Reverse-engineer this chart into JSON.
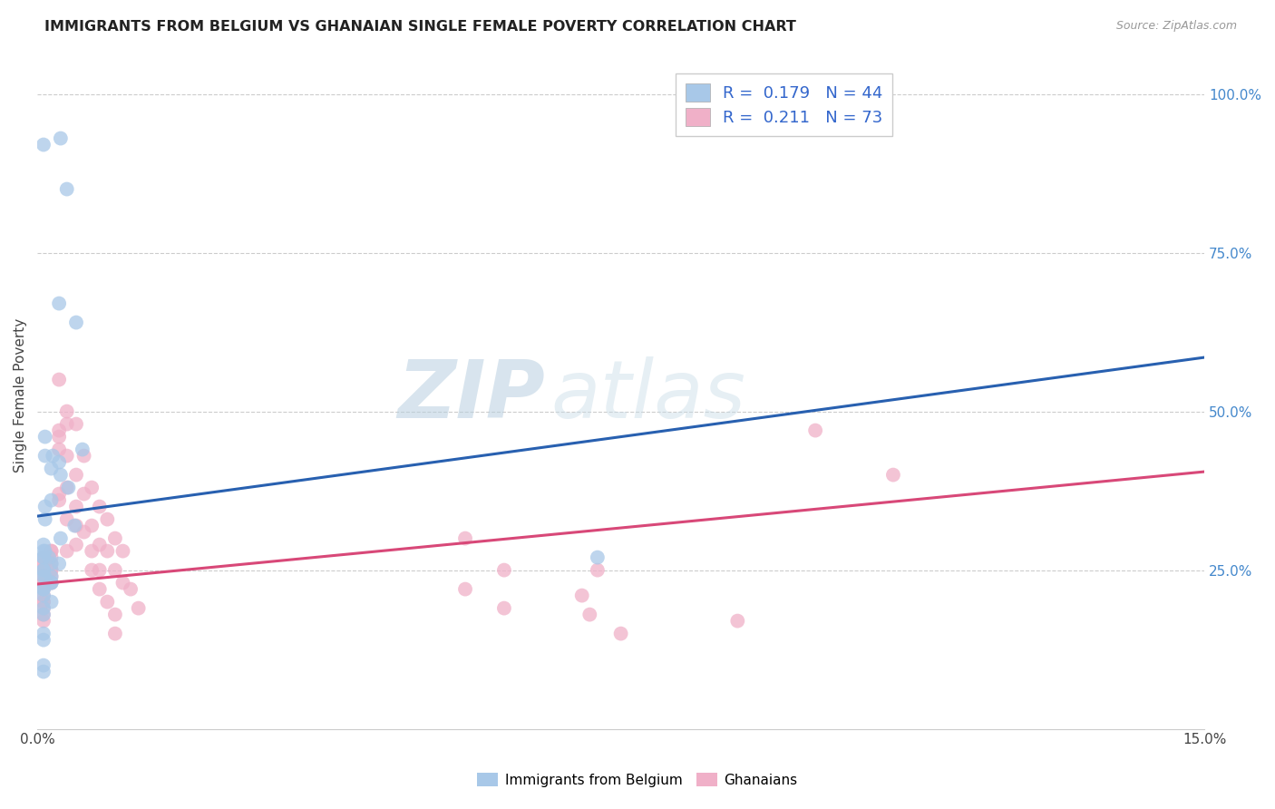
{
  "title": "IMMIGRANTS FROM BELGIUM VS GHANAIAN SINGLE FEMALE POVERTY CORRELATION CHART",
  "source": "Source: ZipAtlas.com",
  "ylabel": "Single Female Poverty",
  "legend_label_blue": "Immigrants from Belgium",
  "legend_label_pink": "Ghanaians",
  "blue_color": "#a8c8e8",
  "pink_color": "#f0b0c8",
  "blue_line_color": "#2860b0",
  "pink_line_color": "#d84878",
  "watermark_zip": "ZIP",
  "watermark_atlas": "atlas",
  "background_color": "#ffffff",
  "blue_line_x0": 0.0,
  "blue_line_y0": 0.335,
  "blue_line_x1": 0.15,
  "blue_line_y1": 0.585,
  "pink_line_x0": 0.0,
  "pink_line_y0": 0.228,
  "pink_line_x1": 0.15,
  "pink_line_y1": 0.405,
  "blue_points_x": [
    0.0008,
    0.003,
    0.0038,
    0.0028,
    0.005,
    0.001,
    0.002,
    0.001,
    0.0028,
    0.0018,
    0.003,
    0.004,
    0.0018,
    0.001,
    0.001,
    0.0048,
    0.003,
    0.0008,
    0.0008,
    0.001,
    0.0008,
    0.0015,
    0.0008,
    0.0018,
    0.0028,
    0.0008,
    0.0008,
    0.0008,
    0.001,
    0.0018,
    0.0018,
    0.0018,
    0.0008,
    0.0008,
    0.0008,
    0.0018,
    0.0008,
    0.0008,
    0.0058,
    0.0008,
    0.0008,
    0.072,
    0.0008,
    0.0008
  ],
  "blue_points_y": [
    0.92,
    0.93,
    0.85,
    0.67,
    0.64,
    0.46,
    0.43,
    0.43,
    0.42,
    0.41,
    0.4,
    0.38,
    0.36,
    0.35,
    0.33,
    0.32,
    0.3,
    0.29,
    0.28,
    0.28,
    0.27,
    0.27,
    0.27,
    0.26,
    0.26,
    0.25,
    0.25,
    0.24,
    0.24,
    0.24,
    0.23,
    0.23,
    0.22,
    0.22,
    0.21,
    0.2,
    0.19,
    0.18,
    0.44,
    0.15,
    0.14,
    0.27,
    0.1,
    0.09
  ],
  "pink_points_x": [
    0.0008,
    0.0008,
    0.0008,
    0.0008,
    0.0008,
    0.0008,
    0.0008,
    0.0008,
    0.0008,
    0.0008,
    0.0008,
    0.0008,
    0.0008,
    0.0008,
    0.0008,
    0.0018,
    0.0018,
    0.0018,
    0.0018,
    0.0018,
    0.0018,
    0.0018,
    0.0018,
    0.0028,
    0.0028,
    0.0028,
    0.0028,
    0.0028,
    0.0028,
    0.0038,
    0.0038,
    0.0038,
    0.0038,
    0.0038,
    0.0038,
    0.005,
    0.005,
    0.005,
    0.005,
    0.005,
    0.006,
    0.006,
    0.006,
    0.007,
    0.007,
    0.007,
    0.007,
    0.008,
    0.008,
    0.008,
    0.008,
    0.009,
    0.009,
    0.009,
    0.01,
    0.01,
    0.01,
    0.01,
    0.011,
    0.011,
    0.012,
    0.013,
    0.055,
    0.055,
    0.06,
    0.06,
    0.07,
    0.071,
    0.072,
    0.075,
    0.09,
    0.1,
    0.11
  ],
  "pink_points_y": [
    0.27,
    0.26,
    0.26,
    0.25,
    0.25,
    0.24,
    0.23,
    0.23,
    0.22,
    0.21,
    0.2,
    0.2,
    0.19,
    0.18,
    0.17,
    0.28,
    0.28,
    0.27,
    0.26,
    0.25,
    0.25,
    0.24,
    0.23,
    0.55,
    0.47,
    0.46,
    0.44,
    0.37,
    0.36,
    0.5,
    0.48,
    0.43,
    0.38,
    0.33,
    0.28,
    0.48,
    0.4,
    0.35,
    0.32,
    0.29,
    0.43,
    0.37,
    0.31,
    0.38,
    0.32,
    0.28,
    0.25,
    0.35,
    0.29,
    0.25,
    0.22,
    0.33,
    0.28,
    0.2,
    0.3,
    0.25,
    0.18,
    0.15,
    0.28,
    0.23,
    0.22,
    0.19,
    0.3,
    0.22,
    0.25,
    0.19,
    0.21,
    0.18,
    0.25,
    0.15,
    0.17,
    0.47,
    0.4
  ],
  "xlim": [
    0.0,
    0.15
  ],
  "ylim": [
    0.0,
    1.05
  ],
  "yticks": [
    0.25,
    0.5,
    0.75,
    1.0
  ],
  "ytick_labels": [
    "25.0%",
    "50.0%",
    "75.0%",
    "100.0%"
  ],
  "xticks": [
    0.0,
    0.15
  ],
  "xtick_labels": [
    "0.0%",
    "15.0%"
  ],
  "figsize": [
    14.06,
    8.92
  ],
  "dpi": 100,
  "legend_blue_r": "0.179",
  "legend_blue_n": "44",
  "legend_pink_r": "0.211",
  "legend_pink_n": "73"
}
